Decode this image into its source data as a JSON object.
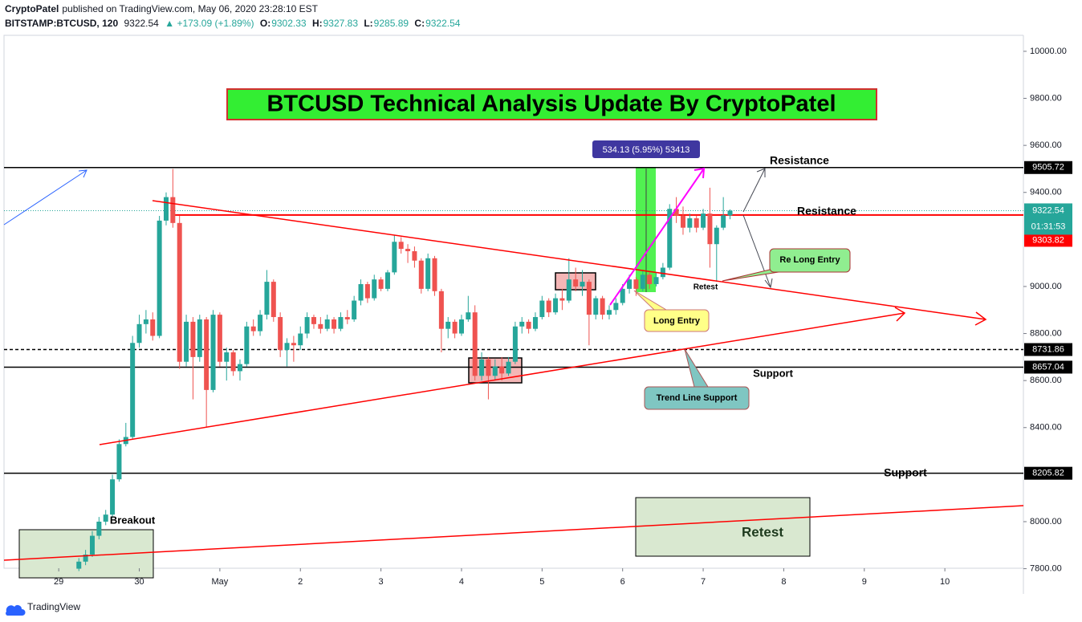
{
  "header": {
    "author": "CryptoPatel",
    "published": "published on TradingView.com, May 06, 2020 23:28:10 EST",
    "symbol": "BITSTAMP:BTCUSD, 120",
    "last": "9322.54",
    "change": "+173.09 (+1.89%)",
    "o_label": "O:",
    "o": "9302.33",
    "h_label": "H:",
    "h": "9327.83",
    "l_label": "L:",
    "l": "9285.89",
    "c_label": "C:",
    "c": "9322.54"
  },
  "footer": {
    "brand": "TradingView"
  },
  "chart_data": {
    "type": "candlestick",
    "up_color": "#26a69a",
    "down_color": "#ef5350",
    "x": [
      6,
      8,
      10,
      12,
      14,
      16,
      18,
      20,
      22,
      24,
      26,
      28,
      30,
      32,
      34,
      36,
      38,
      40,
      42,
      44,
      46,
      48,
      50,
      52,
      54,
      56,
      58,
      60,
      62,
      64,
      66,
      68,
      70,
      72,
      74,
      76,
      78,
      80,
      82,
      84,
      86,
      88,
      90,
      92,
      94,
      96,
      98,
      100,
      102,
      104,
      106,
      108,
      110,
      112,
      114,
      116,
      118,
      120,
      122,
      124,
      126,
      128,
      130,
      132,
      134,
      136,
      138,
      140,
      142,
      144,
      146,
      148,
      150,
      152,
      154,
      156,
      158,
      160,
      162,
      164,
      166,
      168,
      170,
      172,
      174,
      176,
      178,
      180,
      182,
      184,
      186,
      188,
      190,
      192,
      194,
      196,
      198,
      200
    ],
    "ohlc": [
      [
        7800,
        7845,
        7790,
        7830
      ],
      [
        7830,
        7880,
        7815,
        7860
      ],
      [
        7860,
        7960,
        7850,
        7940
      ],
      [
        7940,
        8020,
        7925,
        8000
      ],
      [
        8000,
        8050,
        7985,
        8030
      ],
      [
        8030,
        8200,
        8020,
        8180
      ],
      [
        8180,
        8350,
        8170,
        8330
      ],
      [
        8330,
        8420,
        8320,
        8360
      ],
      [
        8360,
        8790,
        8350,
        8760
      ],
      [
        8760,
        8880,
        8740,
        8840
      ],
      [
        8840,
        8900,
        8800,
        8860
      ],
      [
        8860,
        8890,
        8770,
        8790
      ],
      [
        8790,
        9300,
        8780,
        9280
      ],
      [
        9280,
        9400,
        9260,
        9380
      ],
      [
        9380,
        9500,
        9250,
        9270
      ],
      [
        9270,
        9300,
        8650,
        8680
      ],
      [
        8680,
        8880,
        8660,
        8850
      ],
      [
        8850,
        8870,
        8520,
        8700
      ],
      [
        8700,
        8880,
        8680,
        8860
      ],
      [
        8860,
        8870,
        8400,
        8560
      ],
      [
        8560,
        8900,
        8550,
        8880
      ],
      [
        8880,
        8890,
        8660,
        8680
      ],
      [
        8680,
        8740,
        8600,
        8720
      ],
      [
        8720,
        8730,
        8620,
        8640
      ],
      [
        8640,
        8690,
        8600,
        8670
      ],
      [
        8670,
        8850,
        8660,
        8830
      ],
      [
        8830,
        8860,
        8790,
        8810
      ],
      [
        8810,
        8900,
        8790,
        8880
      ],
      [
        8880,
        9070,
        8860,
        9020
      ],
      [
        9020,
        9030,
        8850,
        8870
      ],
      [
        8870,
        8890,
        8700,
        8730
      ],
      [
        8730,
        8780,
        8660,
        8760
      ],
      [
        8760,
        8790,
        8680,
        8750
      ],
      [
        8750,
        8830,
        8730,
        8800
      ],
      [
        8800,
        8890,
        8780,
        8870
      ],
      [
        8870,
        8880,
        8820,
        8840
      ],
      [
        8840,
        8870,
        8800,
        8820
      ],
      [
        8820,
        8880,
        8810,
        8860
      ],
      [
        8860,
        8870,
        8800,
        8820
      ],
      [
        8820,
        8890,
        8810,
        8870
      ],
      [
        8870,
        8900,
        8840,
        8860
      ],
      [
        8860,
        8960,
        8850,
        8940
      ],
      [
        8940,
        9030,
        8920,
        9010
      ],
      [
        9010,
        9020,
        8930,
        8950
      ],
      [
        8950,
        9050,
        8940,
        9030
      ],
      [
        9030,
        9040,
        8980,
        8990
      ],
      [
        8990,
        9070,
        8980,
        9060
      ],
      [
        9060,
        9220,
        9050,
        9190
      ],
      [
        9190,
        9210,
        9140,
        9160
      ],
      [
        9160,
        9180,
        9100,
        9150
      ],
      [
        9150,
        9170,
        9080,
        9110
      ],
      [
        9110,
        9120,
        8970,
        8990
      ],
      [
        8990,
        9140,
        8980,
        9120
      ],
      [
        9120,
        9130,
        8960,
        8980
      ],
      [
        8980,
        8990,
        8720,
        8820
      ],
      [
        8820,
        8870,
        8780,
        8850
      ],
      [
        8850,
        8860,
        8780,
        8800
      ],
      [
        8800,
        8880,
        8790,
        8860
      ],
      [
        8860,
        8960,
        8850,
        8890
      ],
      [
        8890,
        8920,
        8600,
        8620
      ],
      [
        8620,
        8720,
        8600,
        8690
      ],
      [
        8690,
        8700,
        8520,
        8620
      ],
      [
        8620,
        8690,
        8600,
        8660
      ],
      [
        8660,
        8700,
        8600,
        8630
      ],
      [
        8630,
        8700,
        8620,
        8680
      ],
      [
        8680,
        8850,
        8670,
        8830
      ],
      [
        8830,
        8870,
        8800,
        8850
      ],
      [
        8850,
        8860,
        8800,
        8820
      ],
      [
        8820,
        8890,
        8810,
        8870
      ],
      [
        8870,
        8960,
        8860,
        8940
      ],
      [
        8940,
        8950,
        8870,
        8890
      ],
      [
        8890,
        8970,
        8880,
        8950
      ],
      [
        8950,
        8990,
        8900,
        8940
      ],
      [
        8940,
        9120,
        8930,
        9030
      ],
      [
        9030,
        9080,
        8980,
        9000
      ],
      [
        9000,
        9070,
        8960,
        9020
      ],
      [
        9020,
        9030,
        8750,
        8880
      ],
      [
        8880,
        8960,
        8860,
        8950
      ],
      [
        8950,
        8960,
        8860,
        8880
      ],
      [
        8880,
        8920,
        8860,
        8900
      ],
      [
        8900,
        8950,
        8880,
        8930
      ],
      [
        8930,
        9010,
        8920,
        8990
      ],
      [
        8990,
        9050,
        8970,
        9030
      ],
      [
        9030,
        9040,
        8960,
        8990
      ],
      [
        8990,
        9070,
        8980,
        9050
      ],
      [
        9050,
        9060,
        8990,
        9010
      ],
      [
        9010,
        9060,
        9000,
        9040
      ],
      [
        9040,
        9100,
        9030,
        9080
      ],
      [
        9080,
        9350,
        9070,
        9330
      ],
      [
        9330,
        9380,
        9270,
        9300
      ],
      [
        9300,
        9340,
        9220,
        9250
      ],
      [
        9250,
        9310,
        9230,
        9290
      ],
      [
        9290,
        9300,
        9230,
        9250
      ],
      [
        9250,
        9330,
        9240,
        9310
      ],
      [
        9310,
        9420,
        9080,
        9180
      ],
      [
        9180,
        9260,
        9020,
        9250
      ],
      [
        9250,
        9380,
        9240,
        9302.33
      ],
      [
        9302.33,
        9327.83,
        9285.89,
        9322.54
      ]
    ],
    "xlim": [
      -16.3,
      287.4
    ],
    "xticks": [
      {
        "value": 0,
        "label": "29"
      },
      {
        "value": 24,
        "label": "30"
      },
      {
        "value": 48,
        "label": "May"
      },
      {
        "value": 72,
        "label": "2"
      },
      {
        "value": 96,
        "label": "3"
      },
      {
        "value": 120,
        "label": "4"
      },
      {
        "value": 144,
        "label": "5"
      },
      {
        "value": 168,
        "label": "6"
      },
      {
        "value": 192,
        "label": "7"
      },
      {
        "value": 216,
        "label": "8"
      },
      {
        "value": 240,
        "label": "9"
      },
      {
        "value": 264,
        "label": "10"
      }
    ],
    "ylim": [
      7802,
      10068
    ],
    "yticks": [
      {
        "value": 7800,
        "label": "7800.00"
      },
      {
        "value": 8000,
        "label": "8000.00"
      },
      {
        "value": 8400,
        "label": "8400.00"
      },
      {
        "value": 8600,
        "label": "8600.00"
      },
      {
        "value": 8800,
        "label": "8800.00"
      },
      {
        "value": 9000,
        "label": "9000.00"
      },
      {
        "value": 9400,
        "label": "9400.00"
      },
      {
        "value": 9600,
        "label": "9600.00"
      },
      {
        "value": 9800,
        "label": "9800.00"
      },
      {
        "value": 10000,
        "label": "10000.00"
      }
    ],
    "grid": false,
    "price_lines": [
      {
        "value": 9505.72,
        "color": "#000000",
        "dashed": false
      },
      {
        "value": 8731.86,
        "color": "#000000",
        "dashed": true
      },
      {
        "value": 8657.04,
        "color": "#000000",
        "dashed": false
      },
      {
        "value": 8205.82,
        "color": "#000000",
        "dashed": false
      },
      {
        "value": 9303.82,
        "color": "#ff0000",
        "dashed": false
      }
    ],
    "last_price": {
      "value": 9322.54,
      "countdown": "01:31:53",
      "color": "#26a69a"
    },
    "annotations": {
      "title": "BTCUSD Technical Analysis Update By CryptoPatel",
      "measure": "534.13 (5.95%) 53413",
      "resistance_1": "Resistance",
      "resistance_2": "Resistance",
      "support_1": "Support",
      "support_2": "Support",
      "re_long_entry": "Re Long Entry",
      "retest_1": "Retest",
      "long_entry": "Long Entry",
      "trend_line_support": "Trend Line Support",
      "breakout": "Breakout",
      "retest_2": "Retest"
    }
  }
}
